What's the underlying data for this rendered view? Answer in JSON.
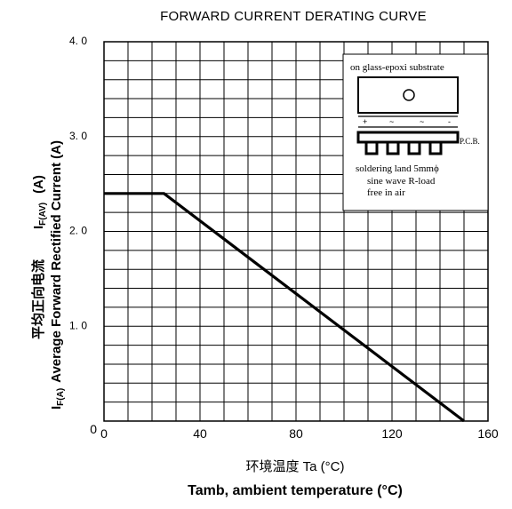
{
  "chart_data": {
    "type": "line",
    "title": "FORWARD CURRENT DERATING CURVE",
    "xlabel_cn": "环境温度  Ta (°C)",
    "xlabel": "Tamb, ambient temperature (°C)",
    "ylabel_parts": {
      "prefix": "I",
      "prefix_sub": "F(A)",
      "main": "Average Forward Rectified Current (A)",
      "cn": "平均正向电流",
      "alt": "I",
      "alt_sub": "F(AV)",
      "alt_unit": "(A)"
    },
    "xlim": [
      0,
      160
    ],
    "ylim": [
      0,
      4.0
    ],
    "x_ticks": [
      {
        "value": 0,
        "label": "0"
      },
      {
        "value": 40,
        "label": "40"
      },
      {
        "value": 80,
        "label": "80"
      },
      {
        "value": 120,
        "label": "120"
      },
      {
        "value": 160,
        "label": "160"
      }
    ],
    "y_ticks": [
      {
        "value": 0,
        "label": "0"
      },
      {
        "value": 1.0,
        "label": "1. 0"
      },
      {
        "value": 2.0,
        "label": "2. 0"
      },
      {
        "value": 3.0,
        "label": "3. 0"
      },
      {
        "value": 4.0,
        "label": "4. 0"
      }
    ],
    "grid": true,
    "x_grid_step": 10,
    "y_grid_step": 0.2,
    "series": [
      {
        "x": [
          0,
          25,
          150
        ],
        "y": [
          2.4,
          2.4,
          0
        ]
      }
    ],
    "inset": {
      "lines": [
        "on glass-epoxi substrate",
        "P.C.B.",
        "soldering land 5mmϕ",
        "sine wave R-load",
        "free in air"
      ],
      "pin_marks": [
        "+",
        "~",
        "~",
        "-"
      ]
    }
  }
}
